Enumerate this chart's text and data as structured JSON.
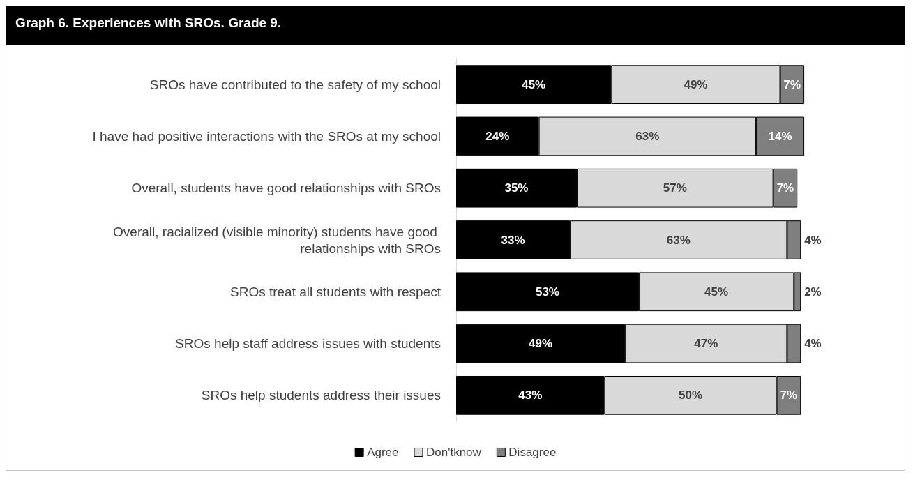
{
  "chart_data": {
    "type": "bar",
    "orientation": "horizontal",
    "stacked": true,
    "title": "Graph 6. Experiences with SROs. Grade 9.",
    "categories": [
      "SROs have contributed to the safety of my school",
      "I have had positive interactions with the SROs at my school",
      "Overall, students have good relationships with SROs",
      "Overall, racialized (visible minority) students have good relationships with SROs",
      "SROs treat all students with respect",
      "SROs help staff address issues with students",
      "SROs help students address their issues"
    ],
    "series": [
      {
        "name": "Agree",
        "color": "#000000",
        "values": [
          45,
          24,
          35,
          33,
          53,
          49,
          43
        ],
        "value_labels": [
          "45%",
          "24%",
          "35%",
          "33%",
          "53%",
          "49%",
          "43%"
        ]
      },
      {
        "name": "Don'tknow",
        "color": "#d9d9d9",
        "values": [
          49,
          63,
          57,
          63,
          45,
          47,
          50
        ],
        "value_labels": [
          "49%",
          "63%",
          "57%",
          "63%",
          "45%",
          "47%",
          "50%"
        ]
      },
      {
        "name": "Disagree",
        "color": "#7f7f7f",
        "values": [
          7,
          14,
          7,
          4,
          2,
          4,
          7
        ],
        "value_labels": [
          "7%",
          "14%",
          "7%",
          "4%",
          "2%",
          "4%",
          "7%"
        ]
      }
    ],
    "legend": "bottom"
  }
}
